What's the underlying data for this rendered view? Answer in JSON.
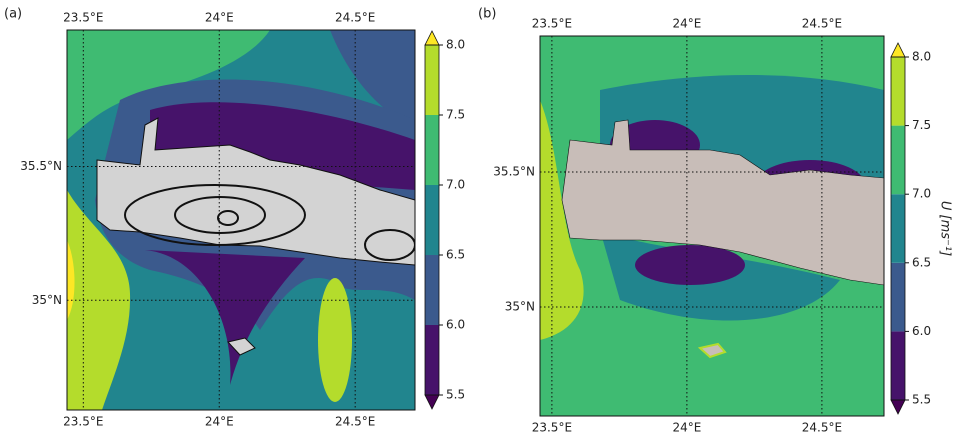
{
  "colorbar": {
    "ticks": [
      5.5,
      {
        "value": 6,
        "label": "6.0"
      },
      6.5,
      {
        "value": 7,
        "label": "7.0"
      },
      7.5,
      {
        "value": 8,
        "label": "8.0"
      }
    ],
    "colors": [
      "#46136a",
      "#3b5a8d",
      "#21858e",
      "#3fbb72",
      "#b4dc2c"
    ],
    "extend_colors": [
      "#440154",
      "#fde725"
    ]
  },
  "panels": [
    {
      "label": "(a)",
      "xlim": [
        23.44,
        24.72
      ],
      "ylim": [
        34.59,
        36.01
      ],
      "xticks": [
        {
          "value": 23.5,
          "label": "23.5°E"
        },
        {
          "value": 24,
          "label": "24°E"
        },
        {
          "value": 24.5,
          "label": "24.5°E"
        }
      ],
      "yticks": [
        {
          "value": 35,
          "label": "35°N"
        },
        {
          "value": 35.5,
          "label": "35.5°N"
        }
      ]
    },
    {
      "label": "(b)",
      "xlim": [
        23.456,
        24.73
      ],
      "ylim": [
        34.596,
        36.004
      ],
      "xticks": [
        {
          "value": 23.5,
          "label": "23.5°E"
        },
        {
          "value": 24,
          "label": "24°E"
        },
        {
          "value": 24.5,
          "label": "24.5°E"
        }
      ],
      "yticks": [
        {
          "value": 35,
          "label": "35°N"
        },
        {
          "value": 35.5,
          "label": "35.5°N"
        }
      ],
      "colorbar_label": "U [ms⁻¹]"
    }
  ]
}
